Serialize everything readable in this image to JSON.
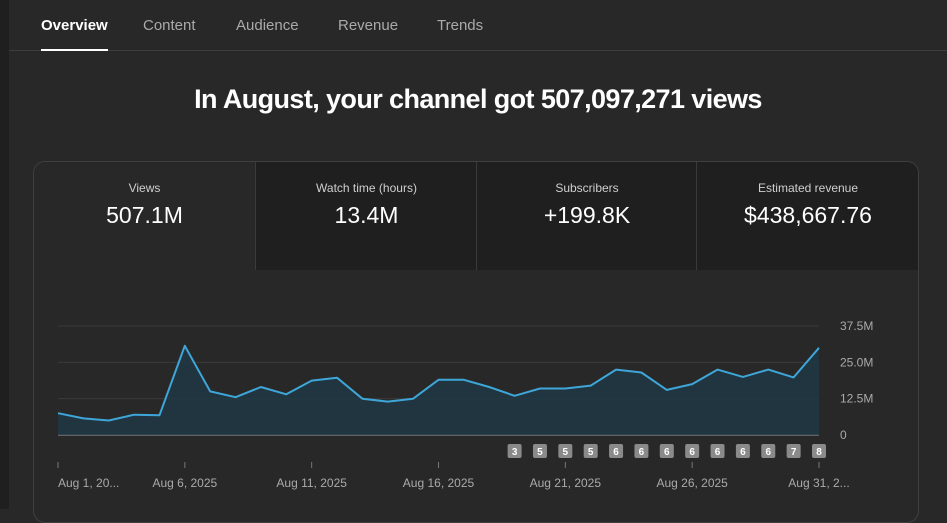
{
  "tabs": [
    {
      "label": "Overview",
      "active": true
    },
    {
      "label": "Content",
      "active": false
    },
    {
      "label": "Audience",
      "active": false
    },
    {
      "label": "Revenue",
      "active": false
    },
    {
      "label": "Trends",
      "active": false
    }
  ],
  "headline": "In August, your channel got 507,097,271 views",
  "metrics": [
    {
      "label": "Views",
      "value": "507.1M"
    },
    {
      "label": "Watch time (hours)",
      "value": "13.4M"
    },
    {
      "label": "Subscribers",
      "value": "+199.8K"
    },
    {
      "label": "Estimated revenue",
      "value": "$438,667.76"
    }
  ],
  "colors": {
    "line": "#3ea6d8",
    "fill": "#1d3a47",
    "grid": "#3a3a3a",
    "badge": "#8a8a8a"
  },
  "chart_data": {
    "type": "area",
    "x": [
      "Aug 1",
      "Aug 2",
      "Aug 3",
      "Aug 4",
      "Aug 5",
      "Aug 6",
      "Aug 7",
      "Aug 8",
      "Aug 9",
      "Aug 10",
      "Aug 11",
      "Aug 12",
      "Aug 13",
      "Aug 14",
      "Aug 15",
      "Aug 16",
      "Aug 17",
      "Aug 18",
      "Aug 19",
      "Aug 20",
      "Aug 21",
      "Aug 22",
      "Aug 23",
      "Aug 24",
      "Aug 25",
      "Aug 26",
      "Aug 27",
      "Aug 28",
      "Aug 29",
      "Aug 30",
      "Aug 31"
    ],
    "values": [
      7.5,
      5.7,
      5.0,
      7.0,
      6.8,
      30.7,
      15.0,
      13.0,
      16.5,
      14.0,
      18.7,
      19.7,
      12.5,
      11.5,
      12.5,
      19.0,
      19.0,
      16.5,
      13.5,
      16.0,
      16.0,
      17.0,
      22.5,
      21.5,
      15.5,
      17.5,
      22.5,
      20.0,
      22.5,
      19.8,
      30.0
    ],
    "y_ticks": [
      "37.5M",
      "25.0M",
      "12.5M",
      "0"
    ],
    "ylim": [
      0,
      37.5
    ],
    "x_tick_labels": [
      "Aug 1, 20...",
      "Aug 6, 2025",
      "Aug 11, 2025",
      "Aug 16, 2025",
      "Aug 21, 2025",
      "Aug 26, 2025",
      "Aug 31, 2..."
    ],
    "x_tick_days": [
      1,
      6,
      11,
      16,
      21,
      26,
      31
    ],
    "badges": [
      {
        "day": 19,
        "label": "3"
      },
      {
        "day": 20,
        "label": "5"
      },
      {
        "day": 21,
        "label": "5"
      },
      {
        "day": 22,
        "label": "5"
      },
      {
        "day": 23,
        "label": "6"
      },
      {
        "day": 24,
        "label": "6"
      },
      {
        "day": 25,
        "label": "6"
      },
      {
        "day": 26,
        "label": "6"
      },
      {
        "day": 27,
        "label": "6"
      },
      {
        "day": 28,
        "label": "6"
      },
      {
        "day": 29,
        "label": "6"
      },
      {
        "day": 30,
        "label": "7"
      },
      {
        "day": 31,
        "label": "8"
      }
    ]
  }
}
